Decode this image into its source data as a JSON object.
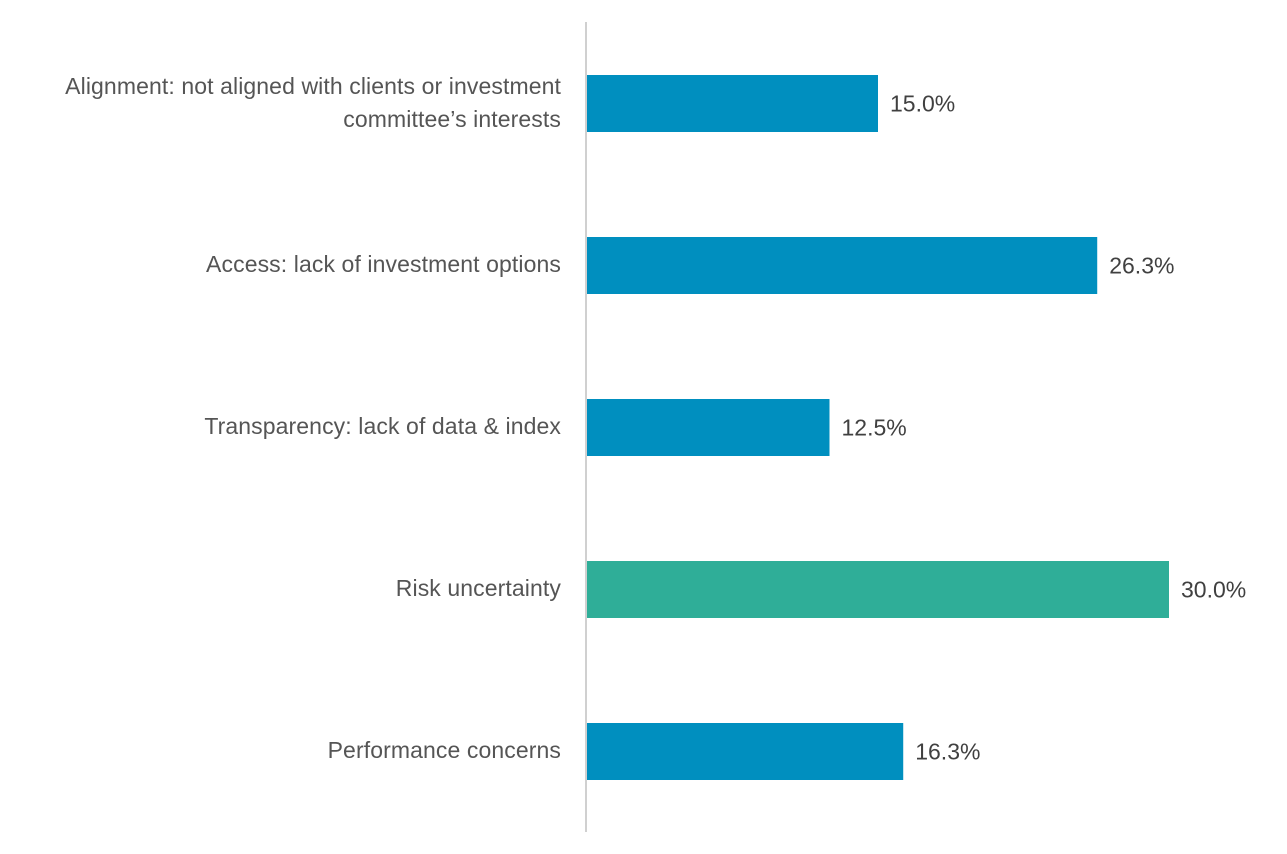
{
  "chart_data": {
    "type": "bar",
    "orientation": "horizontal",
    "categories": [
      "Alignment: not aligned with clients or investment committee’s interests",
      "Access: lack of investment options",
      "Transparency: lack of data & index",
      "Risk uncertainty",
      "Performance concerns"
    ],
    "values": [
      15.0,
      26.3,
      12.5,
      30.0,
      16.3
    ],
    "value_labels": [
      "15.0%",
      "26.3%",
      "12.5%",
      "30.0%",
      "16.3%"
    ],
    "bar_colors": [
      "#008FBF",
      "#008FBF",
      "#008FBF",
      "#2FAE98",
      "#008FBF"
    ],
    "axis_color": "#D0D0D0",
    "xlim": [
      0,
      30
    ],
    "grid": false,
    "legend": "none",
    "title": "",
    "xlabel": "",
    "ylabel": ""
  }
}
